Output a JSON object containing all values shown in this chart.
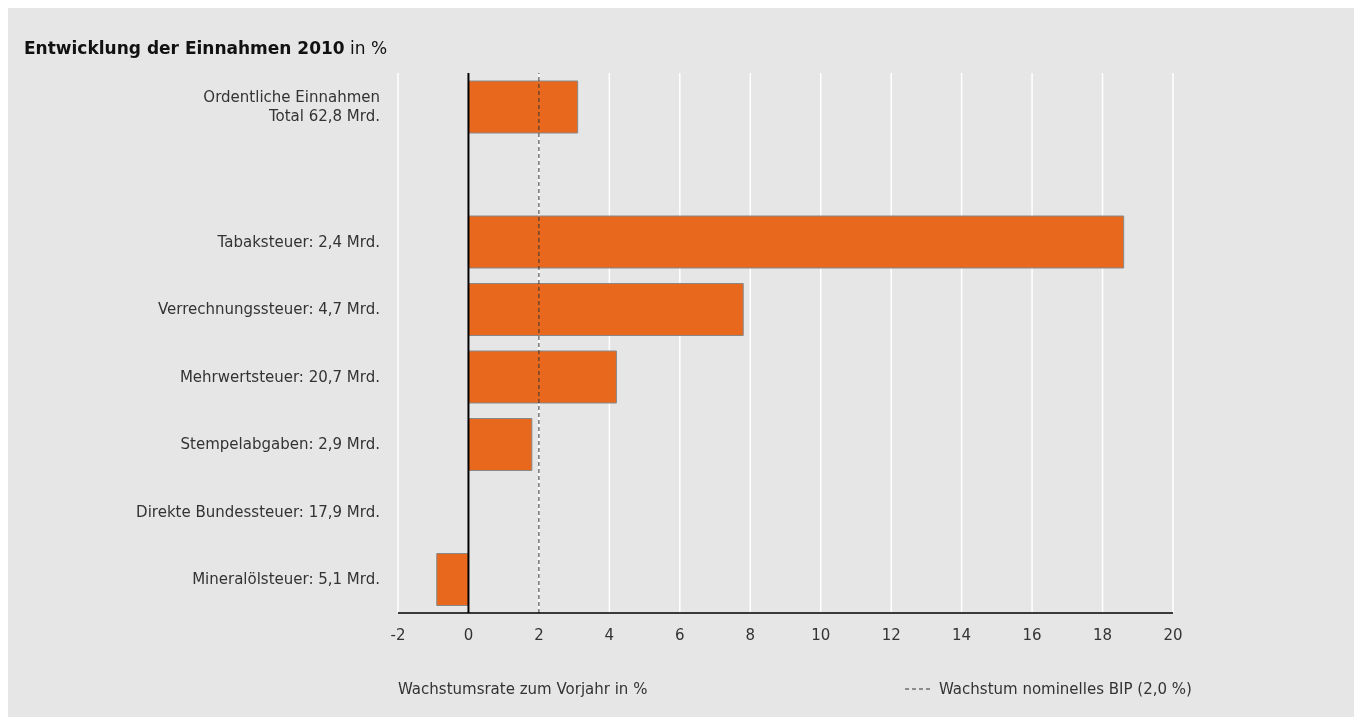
{
  "chart_data": {
    "type": "bar",
    "orientation": "horizontal",
    "title": "Entwicklung der Einnahmen 2010",
    "subtitle": "in %",
    "xlabel": "Wachstumsrate zum Vorjahr in %",
    "categories": [
      "Ordentliche Einnahmen\nTotal 62,8 Mrd.",
      null,
      "Tabaksteuer: 2,4 Mrd.",
      "Verrechnungssteuer: 4,7 Mrd.",
      "Mehrwertsteuer: 20,7 Mrd.",
      "Stempelabgaben: 2,9 Mrd.",
      "Direkte Bundessteuer: 17,9 Mrd.",
      "Mineralölsteuer: 5,1 Mrd."
    ],
    "values": [
      3.1,
      null,
      18.6,
      7.8,
      4.2,
      1.8,
      0,
      -0.9
    ],
    "color": "#e8691e",
    "xlim": [
      -2,
      20
    ],
    "xticks": [
      -2,
      0,
      2,
      4,
      6,
      8,
      10,
      12,
      14,
      16,
      18,
      20
    ],
    "grid": "x",
    "ref_lines": [
      {
        "axis": "x",
        "value": 2,
        "label": "Wachstum nominelles BIP (2,0 %)",
        "line_style": "dashed",
        "color": "#333333"
      }
    ]
  }
}
